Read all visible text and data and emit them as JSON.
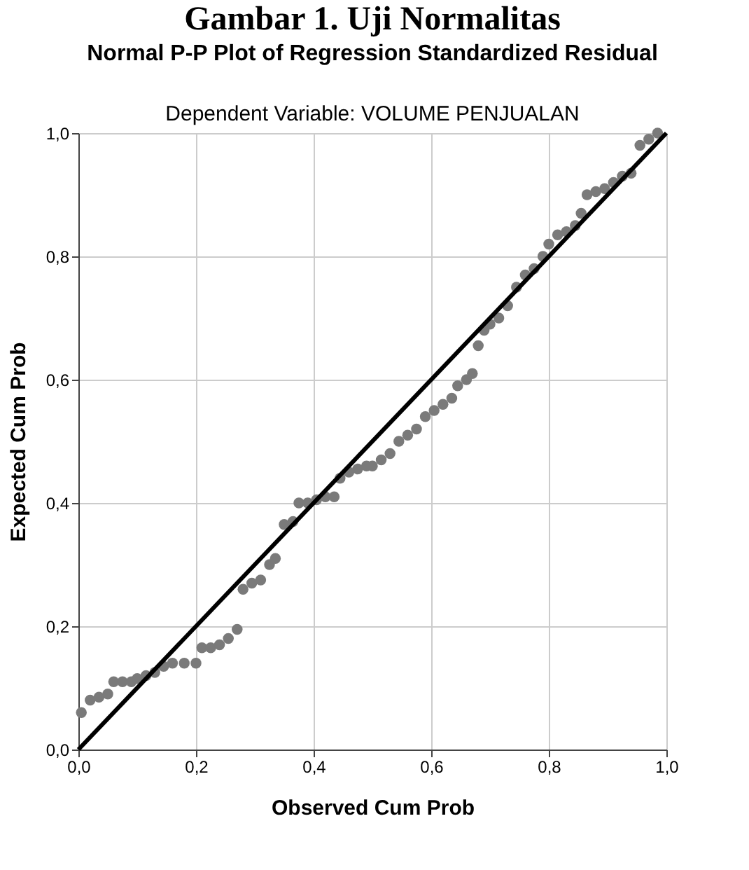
{
  "chart_data": {
    "type": "scatter",
    "title": "Gambar 1. Uji Normalitas",
    "subtitle": "Normal P-P Plot of Regression Standardized Residual",
    "annotations": [
      "Dependent Variable: VOLUME PENJUALAN"
    ],
    "xlabel": "Observed Cum Prob",
    "ylabel": "Expected Cum Prob",
    "xlim": [
      0,
      1
    ],
    "ylim": [
      0,
      1
    ],
    "xticks": [
      {
        "value": 0,
        "label": "0,0"
      },
      {
        "value": 0.2,
        "label": "0,2"
      },
      {
        "value": 0.4,
        "label": "0,4"
      },
      {
        "value": 0.6,
        "label": "0,6"
      },
      {
        "value": 0.8,
        "label": "0,8"
      },
      {
        "value": 1,
        "label": "1,0"
      }
    ],
    "yticks": [
      {
        "value": 0,
        "label": "0,0"
      },
      {
        "value": 0.2,
        "label": "0,2"
      },
      {
        "value": 0.4,
        "label": "0,4"
      },
      {
        "value": 0.6,
        "label": "0,6"
      },
      {
        "value": 0.8,
        "label": "0,8"
      },
      {
        "value": 1,
        "label": "1,0"
      }
    ],
    "grid": true,
    "series": [
      {
        "color": "#7a7a7a",
        "marker": "circle",
        "x": [
          0.005,
          0.02,
          0.035,
          0.05,
          0.06,
          0.075,
          0.09,
          0.1,
          0.115,
          0.13,
          0.145,
          0.16,
          0.18,
          0.2,
          0.21,
          0.225,
          0.24,
          0.255,
          0.27,
          0.28,
          0.295,
          0.31,
          0.325,
          0.335,
          0.35,
          0.365,
          0.375,
          0.39,
          0.405,
          0.42,
          0.435,
          0.445,
          0.46,
          0.475,
          0.49,
          0.5,
          0.515,
          0.53,
          0.545,
          0.56,
          0.575,
          0.59,
          0.605,
          0.62,
          0.635,
          0.645,
          0.66,
          0.67,
          0.68,
          0.69,
          0.7,
          0.715,
          0.73,
          0.745,
          0.76,
          0.775,
          0.79,
          0.8,
          0.815,
          0.83,
          0.845,
          0.855,
          0.865,
          0.88,
          0.895,
          0.91,
          0.925,
          0.94,
          0.955,
          0.97,
          0.985
        ],
        "values": [
          0.06,
          0.08,
          0.085,
          0.09,
          0.11,
          0.11,
          0.11,
          0.115,
          0.12,
          0.125,
          0.135,
          0.14,
          0.14,
          0.14,
          0.165,
          0.165,
          0.17,
          0.18,
          0.195,
          0.26,
          0.27,
          0.275,
          0.3,
          0.31,
          0.365,
          0.37,
          0.4,
          0.4,
          0.405,
          0.41,
          0.41,
          0.44,
          0.45,
          0.455,
          0.46,
          0.46,
          0.47,
          0.48,
          0.5,
          0.51,
          0.52,
          0.54,
          0.55,
          0.56,
          0.57,
          0.59,
          0.6,
          0.61,
          0.655,
          0.68,
          0.69,
          0.7,
          0.72,
          0.75,
          0.77,
          0.78,
          0.8,
          0.82,
          0.835,
          0.84,
          0.85,
          0.87,
          0.9,
          0.905,
          0.91,
          0.92,
          0.93,
          0.935,
          0.98,
          0.99,
          1.0
        ]
      },
      {
        "type": "line",
        "color": "#000000",
        "line_style": "solid",
        "x": [
          0,
          1
        ],
        "values": [
          0,
          1
        ]
      }
    ]
  }
}
